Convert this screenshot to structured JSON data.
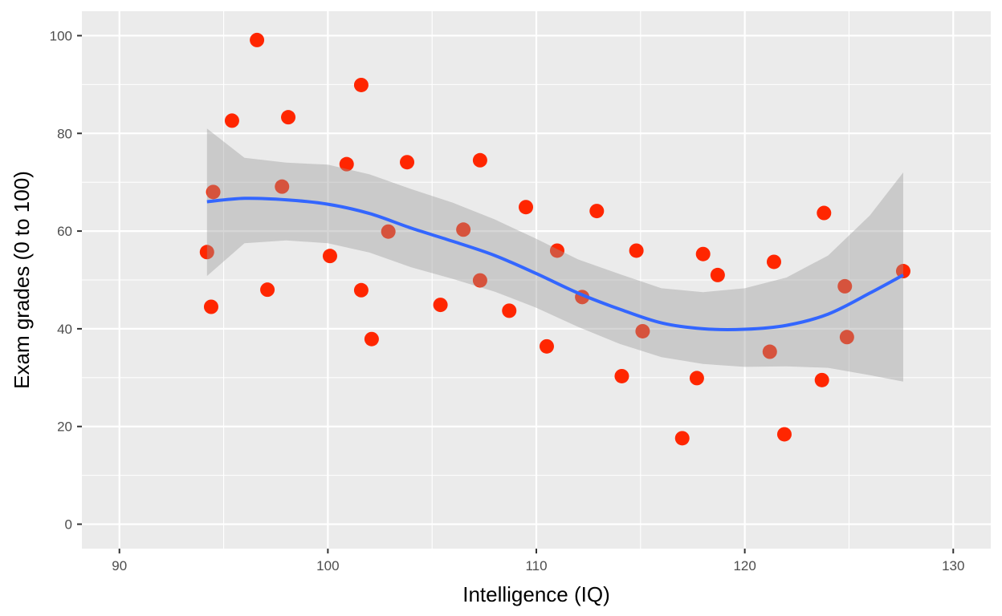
{
  "chart_data": {
    "type": "scatter",
    "xlabel": "Intelligence (IQ)",
    "ylabel": "Exam grades (0 to 100)",
    "xlim": [
      88.2,
      131.8
    ],
    "ylim": [
      -5,
      105
    ],
    "x_ticks": [
      90,
      100,
      110,
      120,
      130
    ],
    "y_ticks": [
      0,
      20,
      40,
      60,
      80,
      100
    ],
    "x_tick_labels": [
      "90",
      "100",
      "110",
      "120",
      "130"
    ],
    "y_tick_labels": [
      "0",
      "20",
      "40",
      "60",
      "80",
      "100"
    ],
    "grid": true,
    "colors": {
      "panel": "#ebebeb",
      "grid": "#ffffff",
      "points": "#ff2600",
      "smooth_line": "#3366ff",
      "ribbon": "#999999"
    },
    "points": [
      {
        "x": 94.2,
        "y": 55.7
      },
      {
        "x": 94.4,
        "y": 44.5
      },
      {
        "x": 94.5,
        "y": 68.0
      },
      {
        "x": 95.4,
        "y": 82.6
      },
      {
        "x": 96.6,
        "y": 99.1
      },
      {
        "x": 97.1,
        "y": 48.0
      },
      {
        "x": 97.8,
        "y": 69.1
      },
      {
        "x": 98.1,
        "y": 83.3
      },
      {
        "x": 100.1,
        "y": 54.9
      },
      {
        "x": 100.9,
        "y": 73.7
      },
      {
        "x": 101.6,
        "y": 89.9
      },
      {
        "x": 101.6,
        "y": 47.9
      },
      {
        "x": 102.1,
        "y": 37.9
      },
      {
        "x": 102.9,
        "y": 59.9
      },
      {
        "x": 103.8,
        "y": 74.1
      },
      {
        "x": 105.4,
        "y": 44.9
      },
      {
        "x": 106.5,
        "y": 60.3
      },
      {
        "x": 107.3,
        "y": 74.5
      },
      {
        "x": 107.3,
        "y": 49.9
      },
      {
        "x": 108.7,
        "y": 43.7
      },
      {
        "x": 109.5,
        "y": 64.9
      },
      {
        "x": 110.5,
        "y": 36.4
      },
      {
        "x": 111.0,
        "y": 56.0
      },
      {
        "x": 112.2,
        "y": 46.5
      },
      {
        "x": 112.9,
        "y": 64.1
      },
      {
        "x": 114.1,
        "y": 30.3
      },
      {
        "x": 114.8,
        "y": 56.0
      },
      {
        "x": 115.1,
        "y": 39.5
      },
      {
        "x": 117.0,
        "y": 17.6
      },
      {
        "x": 117.7,
        "y": 29.9
      },
      {
        "x": 118.0,
        "y": 55.3
      },
      {
        "x": 118.7,
        "y": 51.0
      },
      {
        "x": 121.2,
        "y": 35.3
      },
      {
        "x": 121.4,
        "y": 53.7
      },
      {
        "x": 121.9,
        "y": 18.4
      },
      {
        "x": 123.7,
        "y": 29.5
      },
      {
        "x": 123.8,
        "y": 63.7
      },
      {
        "x": 124.8,
        "y": 48.7
      },
      {
        "x": 124.9,
        "y": 38.3
      },
      {
        "x": 127.6,
        "y": 51.8
      }
    ],
    "smooth": {
      "x": [
        94.2,
        96,
        98,
        100,
        102,
        104,
        106,
        108,
        110,
        112,
        114,
        116,
        118,
        120,
        122,
        124,
        126,
        127.6
      ],
      "y": [
        66.0,
        66.7,
        66.4,
        65.5,
        63.6,
        60.6,
        57.9,
        55.0,
        51.3,
        47.3,
        44.0,
        41.2,
        40.0,
        39.9,
        40.7,
        43.0,
        47.3,
        51.0
      ],
      "lower": [
        50.8,
        57.5,
        58.1,
        57.5,
        55.6,
        52.6,
        50.2,
        47.6,
        44.3,
        40.4,
        36.9,
        34.2,
        32.8,
        32.2,
        32.3,
        32.0,
        30.5,
        29.2
      ],
      "upper": [
        81.0,
        75.0,
        74.0,
        73.6,
        71.6,
        68.6,
        65.8,
        62.4,
        58.4,
        54.2,
        51.2,
        48.3,
        47.5,
        48.3,
        50.5,
        55.0,
        63.2,
        72.0
      ]
    }
  }
}
